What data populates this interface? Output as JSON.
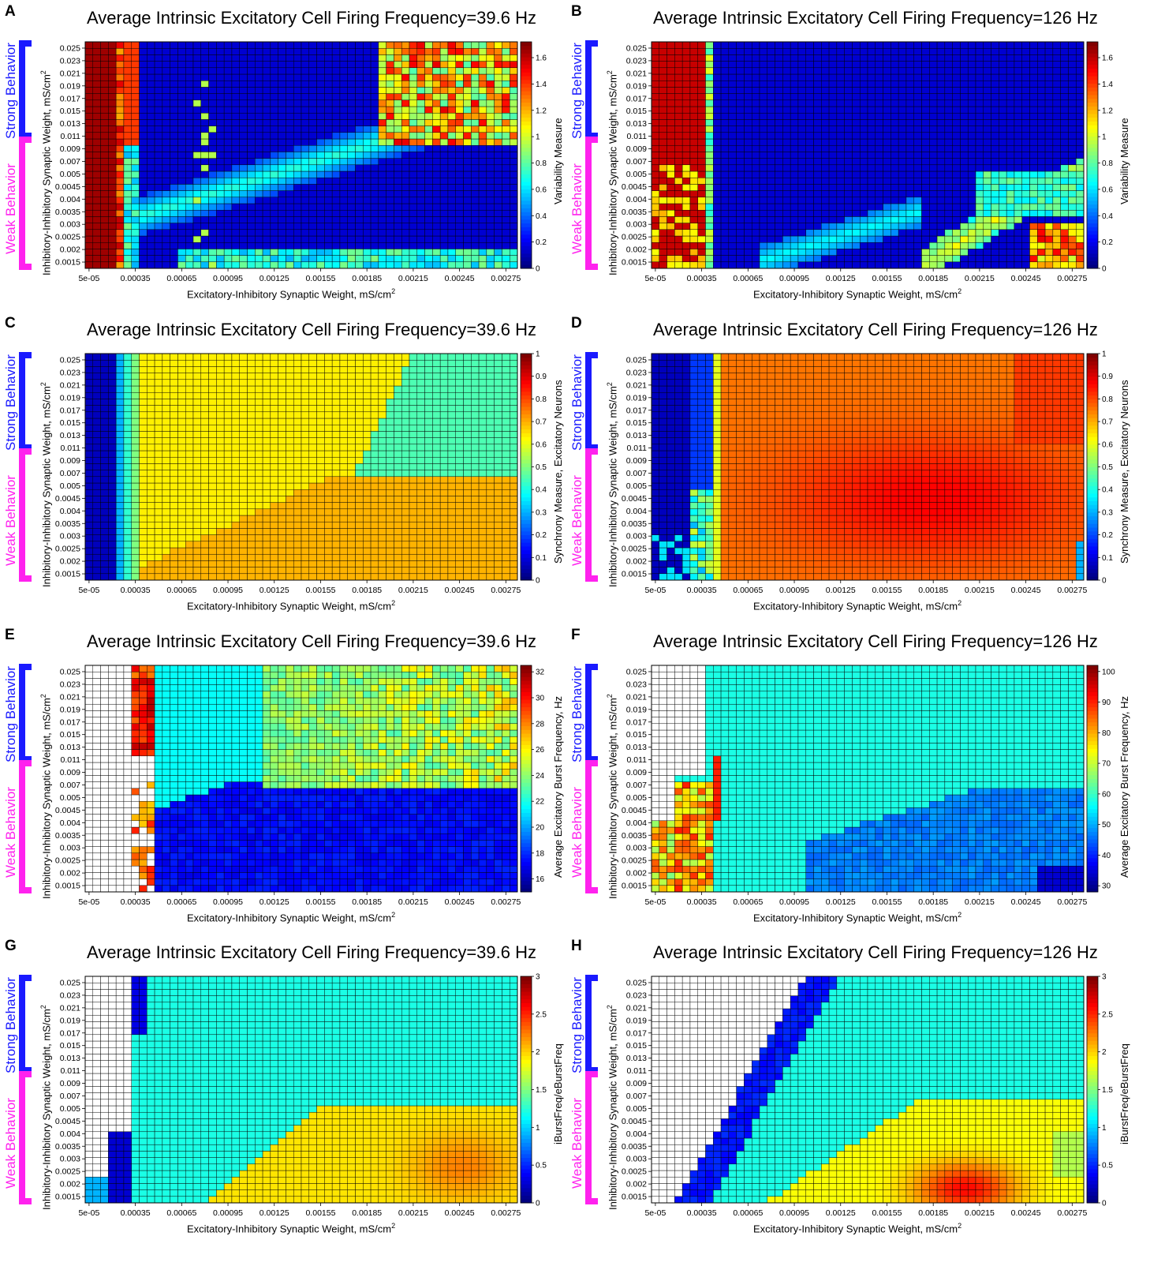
{
  "chart_data": [
    {
      "panel": "A",
      "type": "heatmap",
      "title": "Average Intrinsic Excitatory Cell Firing Frequency=39.6 Hz",
      "xlabel": "Excitatory-Inhibitory Synaptic Weight, mS/cm",
      "xlabel_sup": "2",
      "ylabel": "Inhibitory-Inhibitory Synaptic Weight, mS/cm",
      "ylabel_sup": "2",
      "colorbar_label": "Variability Measure",
      "colorbar_ticks": [
        "0",
        "0.2",
        "0.4",
        "0.6",
        "0.8",
        "1",
        "1.2",
        "1.4",
        "1.6"
      ],
      "colorbar_range": [
        0,
        1.72
      ],
      "strong_label": "Strong Behavior",
      "weak_label": "Weak Behavior",
      "pattern": "variability_low"
    },
    {
      "panel": "B",
      "type": "heatmap",
      "title": "Average Intrinsic Excitatory Cell Firing Frequency=126 Hz",
      "xlabel": "Excitatory-Inhibitory Synaptic Weight, mS/cm",
      "xlabel_sup": "2",
      "ylabel": "Inhibitory-Inhibitory Synaptic Weight, mS/cm",
      "ylabel_sup": "2",
      "colorbar_label": "Variability Measure",
      "colorbar_ticks": [
        "0",
        "0.2",
        "0.4",
        "0.6",
        "0.8",
        "1",
        "1.2",
        "1.4",
        "1.6"
      ],
      "colorbar_range": [
        0,
        1.72
      ],
      "strong_label": "Strong Behavior",
      "weak_label": "Weak Behavior",
      "pattern": "variability_high"
    },
    {
      "panel": "C",
      "type": "heatmap",
      "title": "Average Intrinsic Excitatory Cell Firing Frequency=39.6 Hz",
      "xlabel": "Excitatory-Inhibitory Synaptic Weight, mS/cm",
      "xlabel_sup": "2",
      "ylabel": "Inhibitory-Inhibitory Synaptic Weight, mS/cm",
      "ylabel_sup": "2",
      "colorbar_label": "Synchrony Measure, Excitatory Neurons",
      "colorbar_ticks": [
        "0",
        "0.1",
        "0.2",
        "0.3",
        "0.4",
        "0.5",
        "0.6",
        "0.7",
        "0.8",
        "0.9",
        "1"
      ],
      "colorbar_range": [
        0,
        1
      ],
      "strong_label": "Strong Behavior",
      "weak_label": "Weak Behavior",
      "pattern": "sync_low"
    },
    {
      "panel": "D",
      "type": "heatmap",
      "title": "Average Intrinsic Excitatory Cell Firing Frequency=126 Hz",
      "xlabel": "Excitatory-Inhibitory Synaptic Weight, mS/cm",
      "xlabel_sup": "2",
      "ylabel": "Inhibitory-Inhibitory Synaptic Weight, mS/cm",
      "ylabel_sup": "2",
      "colorbar_label": "Synchrony Measure, Excitatory Neurons",
      "colorbar_ticks": [
        "0",
        "0.1",
        "0.2",
        "0.3",
        "0.4",
        "0.5",
        "0.6",
        "0.7",
        "0.8",
        "0.9",
        "1"
      ],
      "colorbar_range": [
        0,
        1
      ],
      "strong_label": "Strong Behavior",
      "weak_label": "Weak Behavior",
      "pattern": "sync_high"
    },
    {
      "panel": "E",
      "type": "heatmap",
      "title": "Average Intrinsic Excitatory Cell Firing Frequency=39.6 Hz",
      "xlabel": "Excitatory-Inhibitory Synaptic Weight, mS/cm",
      "xlabel_sup": "2",
      "ylabel": "Inhibitory-Inhibitory Synaptic Weight, mS/cm",
      "ylabel_sup": "2",
      "colorbar_label": "Average Excitatory Burst Frequency, Hz",
      "colorbar_ticks": [
        "16",
        "18",
        "20",
        "22",
        "24",
        "26",
        "28",
        "30",
        "32"
      ],
      "colorbar_range": [
        15,
        32.5
      ],
      "strong_label": "Strong Behavior",
      "weak_label": "Weak Behavior",
      "pattern": "burst_low"
    },
    {
      "panel": "F",
      "type": "heatmap",
      "title": "Average Intrinsic Excitatory Cell Firing Frequency=126 Hz",
      "xlabel": "Excitatory-Inhibitory Synaptic Weight, mS/cm",
      "xlabel_sup": "2",
      "ylabel": "Inhibitory-Inhibitory Synaptic Weight, mS/cm",
      "ylabel_sup": "2",
      "colorbar_label": "Average Excitatory Burst Frequency, Hz",
      "colorbar_ticks": [
        "30",
        "40",
        "50",
        "60",
        "70",
        "80",
        "90",
        "100"
      ],
      "colorbar_range": [
        28,
        102
      ],
      "strong_label": "Strong Behavior",
      "weak_label": "Weak Behavior",
      "pattern": "burst_high"
    },
    {
      "panel": "G",
      "type": "heatmap",
      "title": "Average Intrinsic Excitatory Cell Firing Frequency=39.6 Hz",
      "xlabel": "Excitatory-Inhibitory Synaptic Weight, mS/cm",
      "xlabel_sup": "2",
      "ylabel": "Inhibitory-Inhibitory Synaptic Weight, mS/cm",
      "ylabel_sup": "2",
      "colorbar_label": "iBurstFreq/eBurstFreq",
      "colorbar_ticks": [
        "0",
        "0.5",
        "1",
        "1.5",
        "2",
        "2.5",
        "3"
      ],
      "colorbar_range": [
        0,
        3
      ],
      "strong_label": "Strong Behavior",
      "weak_label": "Weak Behavior",
      "pattern": "ratio_low"
    },
    {
      "panel": "H",
      "type": "heatmap",
      "title": "Average Intrinsic Excitatory Cell Firing Frequency=126 Hz",
      "xlabel": "Excitatory-Inhibitory Synaptic Weight, mS/cm",
      "xlabel_sup": "2",
      "ylabel": "Inhibitory-Inhibitory Synaptic Weight, mS/cm",
      "ylabel_sup": "2",
      "colorbar_label": "iBurstFreq/eBurstFreq",
      "colorbar_ticks": [
        "0",
        "0.5",
        "1",
        "1.5",
        "2",
        "2.5",
        "3"
      ],
      "colorbar_range": [
        0,
        3
      ],
      "strong_label": "Strong Behavior",
      "weak_label": "Weak Behavior",
      "pattern": "ratio_high"
    }
  ],
  "axes": {
    "x_ticks": [
      "5e-05",
      "0.00035",
      "0.00065",
      "0.00095",
      "0.00125",
      "0.00155",
      "0.00185",
      "0.00215",
      "0.00245",
      "0.00275"
    ],
    "y_ticks": [
      "0.0015",
      "0.002",
      "0.0025",
      "0.003",
      "0.0035",
      "0.004",
      "0.0045",
      "0.005",
      "0.007",
      "0.009",
      "0.011",
      "0.013",
      "0.015",
      "0.017",
      "0.019",
      "0.021",
      "0.023",
      "0.025"
    ],
    "n_cols": 56,
    "n_rows": 35
  },
  "colors": {
    "strong_bracket": "#1a1aff",
    "weak_bracket": "#ff22ee",
    "grid": "#000000"
  }
}
